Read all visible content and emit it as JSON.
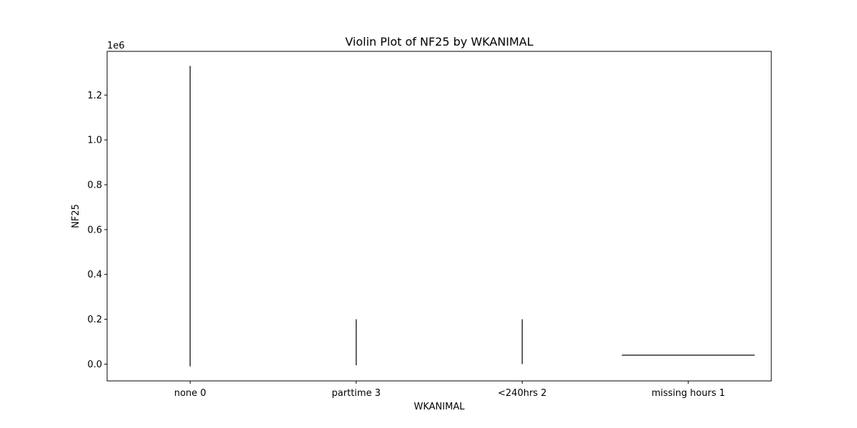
{
  "chart_data": {
    "type": "violin",
    "title": "Violin Plot of NF25 by WKANIMAL",
    "xlabel": "WKANIMAL",
    "ylabel": "NF25",
    "y_offset_text": "1e6",
    "categories": [
      "none 0",
      "parttime 3",
      "<240hrs 2",
      "missing hours 1"
    ],
    "y_ticks": [
      0.0,
      0.2,
      0.4,
      0.6,
      0.8,
      1.0,
      1.2
    ],
    "y_tick_labels": [
      "0.0",
      "0.2",
      "0.4",
      "0.6",
      "0.8",
      "1.0",
      "1.2"
    ],
    "ylim": [
      -0.075,
      1.395
    ],
    "y_units_multiplier": 1000000,
    "series": [
      {
        "category": "none 0",
        "shape": "vertical-line",
        "min": -0.01,
        "max": 1.33
      },
      {
        "category": "parttime 3",
        "shape": "vertical-line",
        "min": -0.005,
        "max": 0.2
      },
      {
        "category": "<240hrs 2",
        "shape": "vertical-line",
        "min": 0.0,
        "max": 0.2
      },
      {
        "category": "missing hours 1",
        "shape": "horizontal-line",
        "value": 0.04
      }
    ],
    "line_color": "#333333",
    "grid": false,
    "legend": "none"
  }
}
